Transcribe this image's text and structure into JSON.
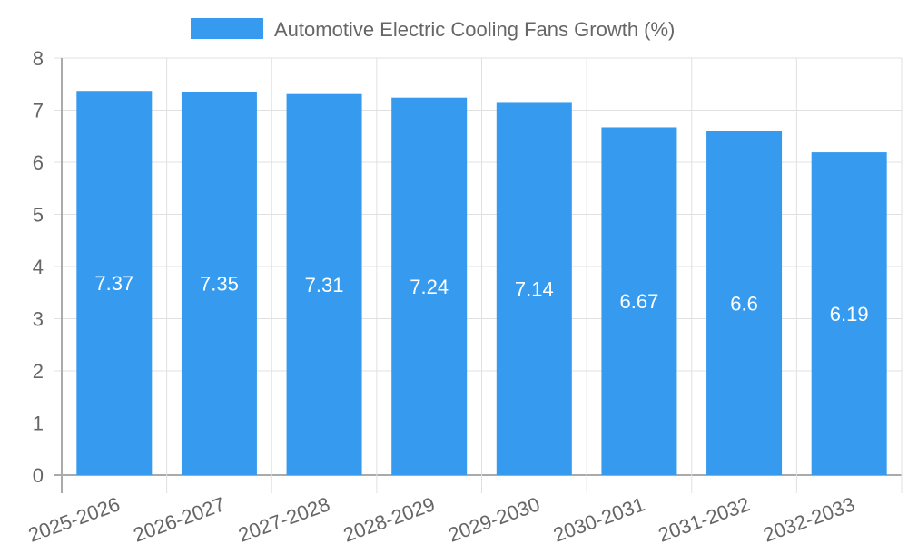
{
  "chart_data": {
    "type": "bar",
    "title": "",
    "legend": {
      "label": "Automotive Electric Cooling Fans Growth (%)",
      "position": "top"
    },
    "categories": [
      "2025-2026",
      "2026-2027",
      "2027-2028",
      "2028-2029",
      "2029-2030",
      "2030-2031",
      "2031-2032",
      "2032-2033"
    ],
    "values": [
      7.37,
      7.35,
      7.31,
      7.24,
      7.14,
      6.67,
      6.6,
      6.19
    ],
    "value_labels": [
      "7.37",
      "7.35",
      "7.31",
      "7.24",
      "7.14",
      "6.67",
      "6.6",
      "6.19"
    ],
    "yticks": [
      "0",
      "1",
      "2",
      "3",
      "4",
      "5",
      "6",
      "7",
      "8"
    ],
    "ylim": [
      0,
      8
    ],
    "xlabel": "",
    "ylabel": "",
    "grid": true,
    "colors": {
      "bar": "#369bef",
      "grid": "#e0e0e0",
      "axis": "#aaaaaa",
      "text": "#666666",
      "label": "#ffffff"
    }
  }
}
